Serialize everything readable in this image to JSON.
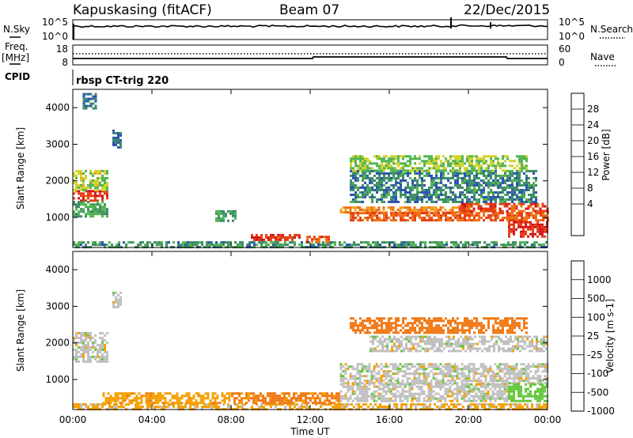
{
  "header": {
    "station": "Kapuskasing (fitACF)",
    "beam": "Beam 07",
    "date": "22/Dec/2015"
  },
  "strip": {
    "nsky_label": "N.Sky",
    "nsky_ticks": [
      "10^5",
      "10^0"
    ],
    "nsearch_label": "N.Search",
    "nsearch_ticks": [
      "10^5",
      "10^0"
    ],
    "freq_label": "Freq.",
    "freq_unit": "[MHz]",
    "freq_ticks": [
      "18",
      "8"
    ],
    "nave_label": "Nave",
    "nave_ticks": [
      "60",
      "0"
    ],
    "cpid_label": "CPID",
    "cpid_value": "rbsp CT-trig 220"
  },
  "colors": {
    "power": [
      "#1428c8",
      "#2850b4",
      "#3c8c64",
      "#50b450",
      "#d2d228",
      "#f0a01e",
      "#f06e14",
      "#e63c14",
      "#d21414"
    ],
    "velocity": [
      "#1e32b4",
      "#3c8c50",
      "#64c83c",
      "#c0c0c0",
      "#f5a000",
      "#f07814",
      "#e13c14",
      "#d21414"
    ]
  },
  "chart_data": [
    {
      "type": "heatmap",
      "name": "power-panel",
      "ylabel": "Slant Range [km]",
      "xlabel": "",
      "xlim": [
        0,
        24
      ],
      "ylim": [
        180,
        4500
      ],
      "xticks": [
        "00:00",
        "04:00",
        "08:00",
        "12:00",
        "16:00",
        "20:00",
        "00:00"
      ],
      "yticks": [
        1000,
        2000,
        3000,
        4000
      ],
      "colorbar": {
        "label": "Power [dB]",
        "ticks": [
          "4",
          "8",
          "12",
          "16",
          "20",
          "24",
          "28"
        ],
        "range": [
          0,
          30
        ]
      },
      "regions": [
        {
          "t": [
            0.0,
            1.8
          ],
          "r": [
            1450,
            1750
          ],
          "level": 26
        },
        {
          "t": [
            0.0,
            1.8
          ],
          "r": [
            1750,
            2300
          ],
          "level": 14
        },
        {
          "t": [
            0.0,
            1.8
          ],
          "r": [
            1050,
            1450
          ],
          "level": 10
        },
        {
          "t": [
            0.0,
            24.0
          ],
          "r": [
            200,
            350
          ],
          "level": 9
        },
        {
          "t": [
            0.5,
            1.2
          ],
          "r": [
            4000,
            4400
          ],
          "level": 7
        },
        {
          "t": [
            2.0,
            2.5
          ],
          "r": [
            2900,
            3400
          ],
          "level": 7
        },
        {
          "t": [
            9.0,
            11.5
          ],
          "r": [
            350,
            550
          ],
          "level": 26
        },
        {
          "t": [
            11.8,
            13.0
          ],
          "r": [
            350,
            500
          ],
          "level": 24
        },
        {
          "t": [
            7.2,
            8.2
          ],
          "r": [
            900,
            1200
          ],
          "level": 10
        },
        {
          "t": [
            13.5,
            19.5
          ],
          "r": [
            1150,
            1300
          ],
          "level": 20
        },
        {
          "t": [
            14.0,
            24.0
          ],
          "r": [
            900,
            1150
          ],
          "level": 23
        },
        {
          "t": [
            19.5,
            24.0
          ],
          "r": [
            1150,
            1400
          ],
          "level": 25
        },
        {
          "t": [
            22.0,
            24.0
          ],
          "r": [
            500,
            900
          ],
          "level": 27
        },
        {
          "t": [
            14.0,
            23.5
          ],
          "r": [
            1400,
            2300
          ],
          "level": 8
        },
        {
          "t": [
            14.0,
            23.0
          ],
          "r": [
            2300,
            2700
          ],
          "level": 13
        }
      ]
    },
    {
      "type": "heatmap",
      "name": "velocity-panel",
      "ylabel": "Slant Range [km]",
      "xlabel": "Time UT",
      "xlim": [
        0,
        24
      ],
      "ylim": [
        180,
        4500
      ],
      "xticks": [
        "00:00",
        "04:00",
        "08:00",
        "12:00",
        "16:00",
        "20:00",
        "00:00"
      ],
      "yticks": [
        1000,
        2000,
        3000,
        4000
      ],
      "colorbar": {
        "label": "Velocity [m s-1]",
        "ticks": [
          "1000",
          "500",
          "100",
          "25",
          "-25",
          "-100",
          "-500",
          "-1000"
        ],
        "range": [
          -1000,
          1000
        ]
      },
      "regions": [
        {
          "t": [
            0.0,
            1.8
          ],
          "r": [
            1450,
            2300
          ],
          "level": 0
        },
        {
          "t": [
            0.0,
            24.0
          ],
          "r": [
            200,
            350
          ],
          "level": -40
        },
        {
          "t": [
            1.5,
            8.0
          ],
          "r": [
            350,
            650
          ],
          "level": -80
        },
        {
          "t": [
            8.0,
            13.5
          ],
          "r": [
            350,
            650
          ],
          "level": -120
        },
        {
          "t": [
            13.5,
            24.0
          ],
          "r": [
            900,
            1450
          ],
          "level": 0
        },
        {
          "t": [
            13.5,
            22.0
          ],
          "r": [
            400,
            900
          ],
          "level": 0
        },
        {
          "t": [
            22.0,
            24.0
          ],
          "r": [
            400,
            900
          ],
          "level": 60
        },
        {
          "t": [
            15.0,
            24.0
          ],
          "r": [
            1800,
            2200
          ],
          "level": 0
        },
        {
          "t": [
            14.0,
            23.0
          ],
          "r": [
            2300,
            2700
          ],
          "level": -150
        },
        {
          "t": [
            2.0,
            2.5
          ],
          "r": [
            3000,
            3400
          ],
          "level": 0
        }
      ]
    }
  ]
}
